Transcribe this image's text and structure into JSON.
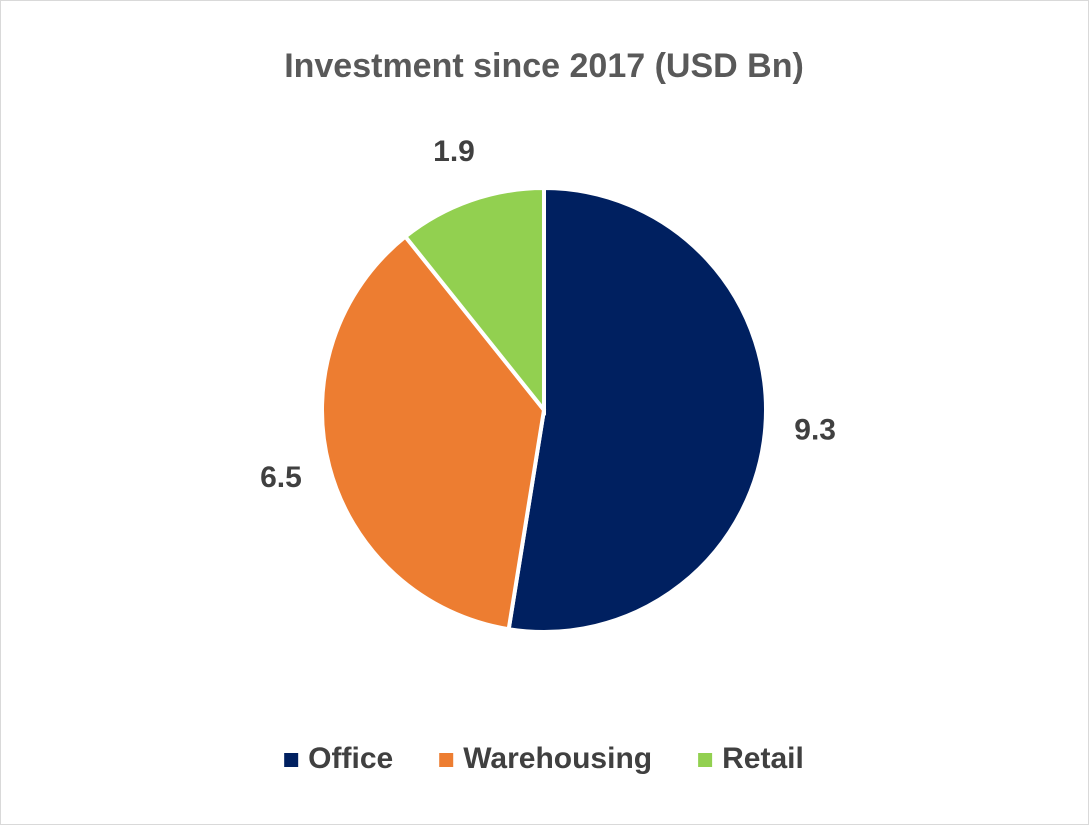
{
  "chart_data": {
    "type": "pie",
    "title": "Investment since 2017 (USD Bn)",
    "categories": [
      "Office",
      "Warehousing",
      "Retail"
    ],
    "values": [
      9.3,
      6.5,
      1.9
    ],
    "colors": [
      "#002060",
      "#ED7D31",
      "#92D050"
    ],
    "legend": "bottom"
  }
}
